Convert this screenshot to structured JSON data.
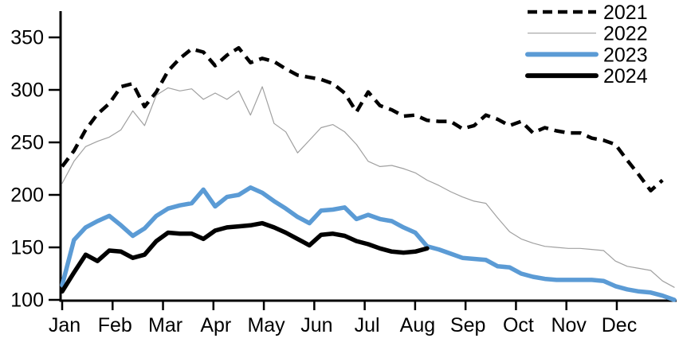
{
  "chart_data": {
    "type": "line",
    "x_axis": {
      "tick_labels": [
        "Jan",
        "Feb",
        "Mar",
        "Apr",
        "May",
        "Jun",
        "Jul",
        "Aug",
        "Sep",
        "Oct",
        "Nov",
        "Dec"
      ],
      "unit": "weekly points across one year"
    },
    "y_axis": {
      "ticks": [
        100,
        150,
        200,
        250,
        300,
        350
      ],
      "range": [
        100,
        358
      ],
      "grid": "off"
    },
    "legend": {
      "position": "top-right",
      "entries": [
        "2021",
        "2022",
        "2023",
        "2024"
      ]
    },
    "colors": {
      "black": "#000000",
      "gray": "#a0a0a0",
      "blue": "#5b9bd5"
    },
    "series": [
      {
        "name": "2021",
        "style": "dashed",
        "color": "#000000",
        "width": 4.5,
        "values": [
          227,
          242,
          262,
          277,
          287,
          303,
          306,
          284,
          298,
          318,
          330,
          339,
          336,
          323,
          333,
          340,
          326,
          330,
          327,
          320,
          314,
          312,
          310,
          306,
          297,
          279,
          298,
          285,
          281,
          275,
          276,
          271,
          270,
          270,
          263,
          266,
          276,
          272,
          266,
          270,
          259,
          264,
          261,
          259,
          259,
          254,
          252,
          248,
          233,
          219,
          204,
          214
        ]
      },
      {
        "name": "2022",
        "style": "solid",
        "color": "#a0a0a0",
        "width": 1.2,
        "values": [
          211,
          232,
          246,
          251,
          255,
          262,
          280,
          266,
          295,
          302,
          299,
          301,
          291,
          297,
          291,
          299,
          276,
          303,
          268,
          260,
          240,
          252,
          264,
          267,
          260,
          248,
          232,
          227,
          228,
          225,
          221,
          214,
          209,
          203,
          198,
          194,
          192,
          178,
          165,
          158,
          154,
          151,
          150,
          149,
          149,
          148,
          147,
          137,
          132,
          130,
          128,
          118,
          112
        ]
      },
      {
        "name": "2023",
        "style": "solid",
        "color": "#5b9bd5",
        "width": 5.5,
        "values": [
          114,
          157,
          169,
          175,
          180,
          171,
          161,
          168,
          180,
          187,
          190,
          192,
          205,
          189,
          198,
          200,
          207,
          202,
          194,
          187,
          179,
          173,
          185,
          186,
          188,
          177,
          181,
          177,
          175,
          169,
          164,
          151,
          148,
          144,
          140,
          139,
          138,
          132,
          131,
          125,
          122,
          120,
          119,
          119,
          119,
          119,
          118,
          113,
          110,
          108,
          107,
          104,
          100
        ]
      },
      {
        "name": "2024",
        "style": "solid",
        "color": "#000000",
        "width": 5.5,
        "values": [
          108,
          126,
          143,
          137,
          147,
          146,
          140,
          143,
          156,
          164,
          163,
          163,
          158,
          166,
          169,
          170,
          171,
          173,
          169,
          164,
          158,
          152,
          162,
          163,
          161,
          156,
          153,
          149,
          146,
          145,
          146,
          149
        ]
      }
    ]
  }
}
